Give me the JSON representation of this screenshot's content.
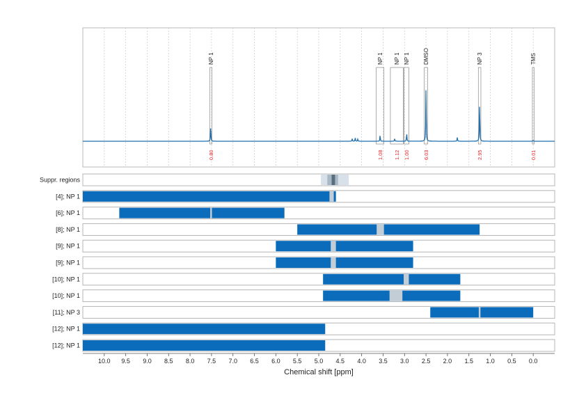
{
  "chart_data": {
    "type": "line",
    "xlabel": "Chemical shift [ppm]",
    "xlim": [
      10.5,
      -0.5
    ],
    "x_reversed": true,
    "xticks": [
      10.0,
      9.5,
      9.0,
      8.5,
      8.0,
      7.5,
      7.0,
      6.5,
      6.0,
      5.5,
      5.0,
      4.5,
      4.0,
      3.5,
      3.0,
      2.5,
      2.0,
      1.5,
      1.0,
      0.5,
      0.0
    ],
    "xtick_labels": [
      "10.0",
      "9.5",
      "9.0",
      "8.5",
      "8.0",
      "7.5",
      "7.0",
      "6.5",
      "6.0",
      "5.5",
      "5.0",
      "4.5",
      "4.0",
      "3.5",
      "3.0",
      "2.5",
      "2.0",
      "1.5",
      "1.0",
      "0.5",
      "0.0"
    ],
    "grid": true,
    "spectrum": {
      "color": "#1f6faf",
      "peaks": [
        {
          "x": 7.52,
          "h": 0.18
        },
        {
          "x": 4.22,
          "h": 0.03
        },
        {
          "x": 4.15,
          "h": 0.04
        },
        {
          "x": 4.09,
          "h": 0.025
        },
        {
          "x": 3.57,
          "h": 0.07
        },
        {
          "x": 3.23,
          "h": 0.03
        },
        {
          "x": 2.95,
          "h": 0.09
        },
        {
          "x": 2.5,
          "h": 0.62
        },
        {
          "x": 1.77,
          "h": 0.045
        },
        {
          "x": 1.25,
          "h": 0.45
        },
        {
          "x": 0.0,
          "h": 0.01
        }
      ]
    },
    "peak_annotations": [
      {
        "label": "NP 1",
        "x_start": 7.54,
        "x_end": 7.49,
        "integral": "0.80"
      },
      {
        "label": "NP 1",
        "x_start": 3.66,
        "x_end": 3.48,
        "integral": "1.08"
      },
      {
        "label": "NP 1",
        "x_start": 3.33,
        "x_end": 3.03,
        "integral": "1.12"
      },
      {
        "label": "NP 1",
        "x_start": 3.01,
        "x_end": 2.9,
        "integral": "1.00"
      },
      {
        "label": "DMSO",
        "x_start": 2.54,
        "x_end": 2.46,
        "integral": "6.03"
      },
      {
        "label": "NP 3",
        "x_start": 1.28,
        "x_end": 1.22,
        "integral": "2.95"
      },
      {
        "label": "TMS",
        "x_start": 0.02,
        "x_end": -0.02,
        "integral": "0.01"
      }
    ],
    "suppression_row": {
      "label": "Suppr. regions",
      "regions": [
        {
          "x_start": 4.95,
          "x_end": 4.3,
          "level": "light"
        },
        {
          "x_start": 4.8,
          "x_end": 4.55,
          "level": "medium"
        },
        {
          "x_start": 4.7,
          "x_end": 4.62,
          "level": "dark"
        }
      ]
    },
    "range_rows": [
      {
        "label": "[4]; NP 1",
        "x_start": 10.5,
        "x_end": 4.6,
        "gaps": [
          [
            4.75,
            4.65
          ]
        ]
      },
      {
        "label": "[6]; NP 1",
        "x_start": 9.65,
        "x_end": 5.8,
        "gaps": [
          [
            7.53,
            7.49
          ]
        ]
      },
      {
        "label": "[8]; NP 1",
        "x_start": 5.5,
        "x_end": 1.25,
        "gaps": [
          [
            3.65,
            3.48
          ]
        ]
      },
      {
        "label": "[9]; NP 1",
        "x_start": 6.0,
        "x_end": 2.8,
        "gaps": [
          [
            4.72,
            4.6
          ]
        ]
      },
      {
        "label": "[9]; NP 1",
        "x_start": 6.0,
        "x_end": 2.8,
        "gaps": [
          [
            4.72,
            4.6
          ]
        ]
      },
      {
        "label": "[10]; NP 1",
        "x_start": 4.9,
        "x_end": 1.7,
        "gaps": [
          [
            3.02,
            2.9
          ]
        ]
      },
      {
        "label": "[10]; NP 1",
        "x_start": 4.9,
        "x_end": 1.7,
        "gaps": [
          [
            3.35,
            3.05
          ]
        ]
      },
      {
        "label": "[11]; NP 3",
        "x_start": 2.4,
        "x_end": 0.0,
        "gaps": [
          [
            1.27,
            1.23
          ]
        ]
      },
      {
        "label": "[12]; NP 1",
        "x_start": 10.5,
        "x_end": 4.85,
        "gaps": []
      },
      {
        "label": "[12]; NP 1",
        "x_start": 10.5,
        "x_end": 4.85,
        "gaps": []
      }
    ],
    "colors": {
      "bar": "#0a6cba",
      "gap": "#c2cdd6",
      "integral": "#e8262b",
      "supp_light": "#d8e1ea",
      "supp_medium": "#a8b8c6",
      "supp_dark": "#5b6e7e"
    }
  }
}
